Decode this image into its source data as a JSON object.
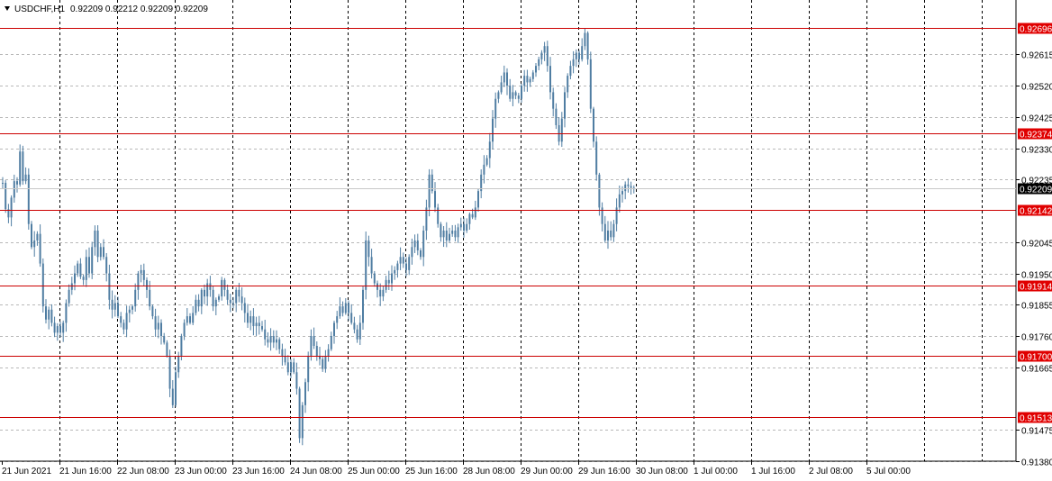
{
  "header": {
    "symbol": "USDCHF,H1",
    "ohlc": "0.92209 0.92212 0.92209 0.92209"
  },
  "colors": {
    "candle": "#4f7da2",
    "level_line": "#cc0000",
    "level_label_bg": "#e00000",
    "current_price_bg": "#000000",
    "grid": "#b8b8b8",
    "session_separator": "#000000"
  },
  "chart_data": {
    "type": "candlestick",
    "symbol": "USDCHF",
    "timeframe": "H1",
    "y_ticks": [
      "0.92615",
      "0.92520",
      "0.92425",
      "0.92330",
      "0.92235",
      "0.92045",
      "0.91950",
      "0.91855",
      "0.91760",
      "0.91665",
      "0.91475",
      "0.91380"
    ],
    "x_ticks": [
      "21 Jun 2021",
      "21 Jun 16:00",
      "22 Jun 08:00",
      "23 Jun 00:00",
      "23 Jun 16:00",
      "24 Jun 08:00",
      "25 Jun 00:00",
      "25 Jun 16:00",
      "28 Jun 08:00",
      "29 Jun 00:00",
      "29 Jun 16:00",
      "30 Jun 08:00",
      "1 Jul 00:00",
      "1 Jul 16:00",
      "2 Jul 08:00",
      "5 Jul 00:00"
    ],
    "ylim": [
      0.9138,
      0.9278
    ],
    "levels": [
      "0.92696",
      "0.92374",
      "0.92142",
      "0.91914",
      "0.91700",
      "0.91513"
    ],
    "current_price": "0.92209",
    "series": [
      {
        "x": "21 Jun 2021",
        "values": [
          0.92225,
          0.92145,
          0.9212,
          0.9218,
          0.9223,
          0.9222,
          0.9232,
          0.9223,
          0.9225,
          0.921,
          0.9203,
          0.9205,
          0.9207,
          0.9198,
          0.9185,
          0.9181,
          0.9184,
          0.918,
          0.9177,
          0.9179
        ]
      },
      {
        "x": "21 Jun 16:00",
        "values": [
          0.9177,
          0.918,
          0.9186,
          0.919,
          0.9192,
          0.9195,
          0.9198,
          0.9194,
          0.9193,
          0.92,
          0.9195,
          0.9203,
          0.9208,
          0.92,
          0.9203,
          0.92,
          0.9195,
          0.9187,
          0.9184,
          0.9186
        ]
      },
      {
        "x": "22 Jun 08:00",
        "values": [
          0.9182,
          0.918,
          0.9178,
          0.9183,
          0.9184,
          0.9185,
          0.919,
          0.9195,
          0.9196,
          0.9193,
          0.919,
          0.9185,
          0.9182,
          0.9178,
          0.918,
          0.9176,
          0.9174,
          0.917,
          0.916,
          0.9155
        ]
      },
      {
        "x": "23 Jun 00:00",
        "values": [
          0.9165,
          0.917,
          0.9176,
          0.918,
          0.9182,
          0.918,
          0.9183,
          0.9187,
          0.9185,
          0.919,
          0.9188,
          0.9192,
          0.919,
          0.9185,
          0.9187,
          0.9188,
          0.9193,
          0.919,
          0.9187,
          0.9186
        ]
      },
      {
        "x": "23 Jun 16:00",
        "values": [
          0.9186,
          0.919,
          0.9188,
          0.9186,
          0.9183,
          0.918,
          0.9182,
          0.9179,
          0.918,
          0.9179,
          0.9178,
          0.9175,
          0.9174,
          0.9176,
          0.9174,
          0.9175,
          0.9172,
          0.917,
          0.9168,
          0.9165
        ]
      },
      {
        "x": "24 Jun 08:00",
        "values": [
          0.9168,
          0.9165,
          0.916,
          0.9145,
          0.9155,
          0.9162,
          0.917,
          0.9176,
          0.9173,
          0.917,
          0.9169,
          0.9166,
          0.917,
          0.9172,
          0.9176,
          0.918,
          0.9182,
          0.9185,
          0.9183,
          0.9186
        ]
      },
      {
        "x": "25 Jun 00:00",
        "values": [
          0.9183,
          0.918,
          0.9178,
          0.9175,
          0.918,
          0.919,
          0.9205,
          0.92,
          0.9195,
          0.9192,
          0.919,
          0.9188,
          0.919,
          0.9193,
          0.9192,
          0.9195,
          0.9196,
          0.9198,
          0.92,
          0.9198
        ]
      },
      {
        "x": "25 Jun 16:00",
        "values": [
          0.9196,
          0.92,
          0.9203,
          0.9205,
          0.9202,
          0.92,
          0.9208,
          0.9215,
          0.9225,
          0.922,
          0.9215,
          0.921,
          0.9206,
          0.9208,
          0.9205,
          0.9207,
          0.9208,
          0.9206,
          0.9209,
          0.921
        ]
      },
      {
        "x": "28 Jun 08:00",
        "values": [
          0.9208,
          0.921,
          0.9213,
          0.9212,
          0.9215,
          0.922,
          0.9225,
          0.9228,
          0.923,
          0.9235,
          0.9242,
          0.9248,
          0.925,
          0.9253,
          0.9256,
          0.9252,
          0.9248,
          0.925,
          0.9249,
          0.9248
        ]
      },
      {
        "x": "29 Jun 00:00",
        "values": [
          0.9252,
          0.9255,
          0.9253,
          0.9254,
          0.9256,
          0.9258,
          0.926,
          0.9262,
          0.9264,
          0.9258,
          0.925,
          0.9245,
          0.924,
          0.9235,
          0.9242,
          0.925,
          0.9255,
          0.9258,
          0.926,
          0.9262
        ]
      },
      {
        "x": "29 Jun 16:00",
        "values": [
          0.926,
          0.9264,
          0.9268,
          0.926,
          0.9245,
          0.9235,
          0.9225,
          0.9215,
          0.921,
          0.9205,
          0.9208,
          0.9206,
          0.921,
          0.9215,
          0.9219,
          0.922,
          0.9222,
          0.92215,
          0.9221,
          0.92209
        ]
      }
    ]
  }
}
